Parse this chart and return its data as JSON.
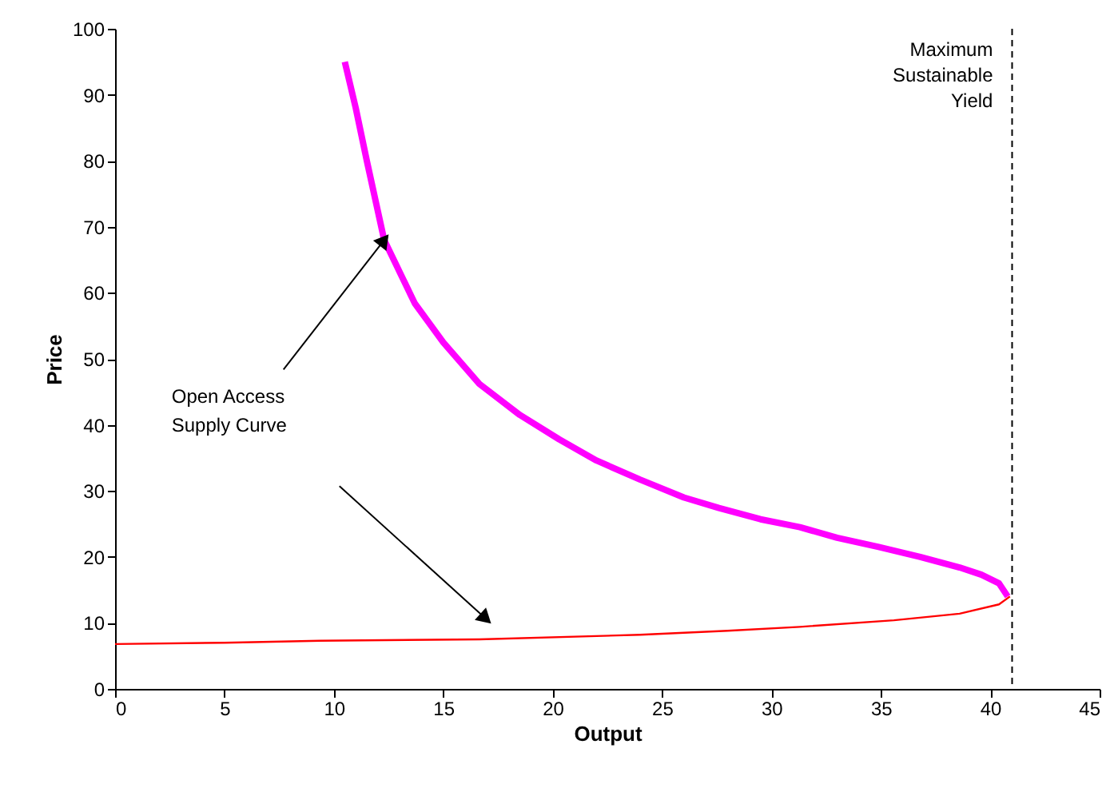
{
  "chart_data": {
    "type": "line",
    "xlabel": "Output",
    "ylabel": "Price",
    "xlim": [
      0,
      45
    ],
    "xticks": [
      0,
      5,
      10,
      15,
      20,
      25,
      30,
      35,
      40,
      45
    ],
    "ylim": [
      0,
      100
    ],
    "yticks": [
      0,
      10,
      20,
      30,
      40,
      50,
      60,
      70,
      80,
      90,
      100
    ],
    "marker": "none",
    "line_style": "solid",
    "series": [
      {
        "color": "#ff00ff",
        "x": [
          10.5,
          11,
          11.5,
          12.3,
          13.7,
          15,
          16.65,
          18.5,
          20.3,
          22,
          24,
          26,
          27.6,
          29.5,
          31.3,
          33,
          34.9,
          36.8,
          38.6,
          39.6,
          40.4,
          40.8
        ],
        "values": [
          95,
          88,
          80.1,
          68,
          58.4,
          52.5,
          46.2,
          41.5,
          37.8,
          34.6,
          31.7,
          29,
          27.4,
          25.7,
          24.5,
          22.9,
          21.5,
          20,
          18.4,
          17.3,
          16,
          14
        ]
      },
      {
        "color": "#ff0000",
        "x": [
          0,
          5,
          9.35,
          16.65,
          24,
          28,
          31.3,
          35.6,
          38.6,
          40.4,
          40.9
        ],
        "values": [
          6.8,
          7,
          7.3,
          7.5,
          8.2,
          8.8,
          9.4,
          10.4,
          11.4,
          12.8,
          14
        ]
      }
    ],
    "ref_lines": [
      {
        "axis": "x",
        "value": 41,
        "label": "Maximum\nSustainable\nYield",
        "color": "#000000",
        "line_style": "dashed"
      }
    ],
    "annotations": [
      {
        "text": "Open Access\nSupply Curve",
        "x": 12.3,
        "y": 68
      }
    ]
  }
}
